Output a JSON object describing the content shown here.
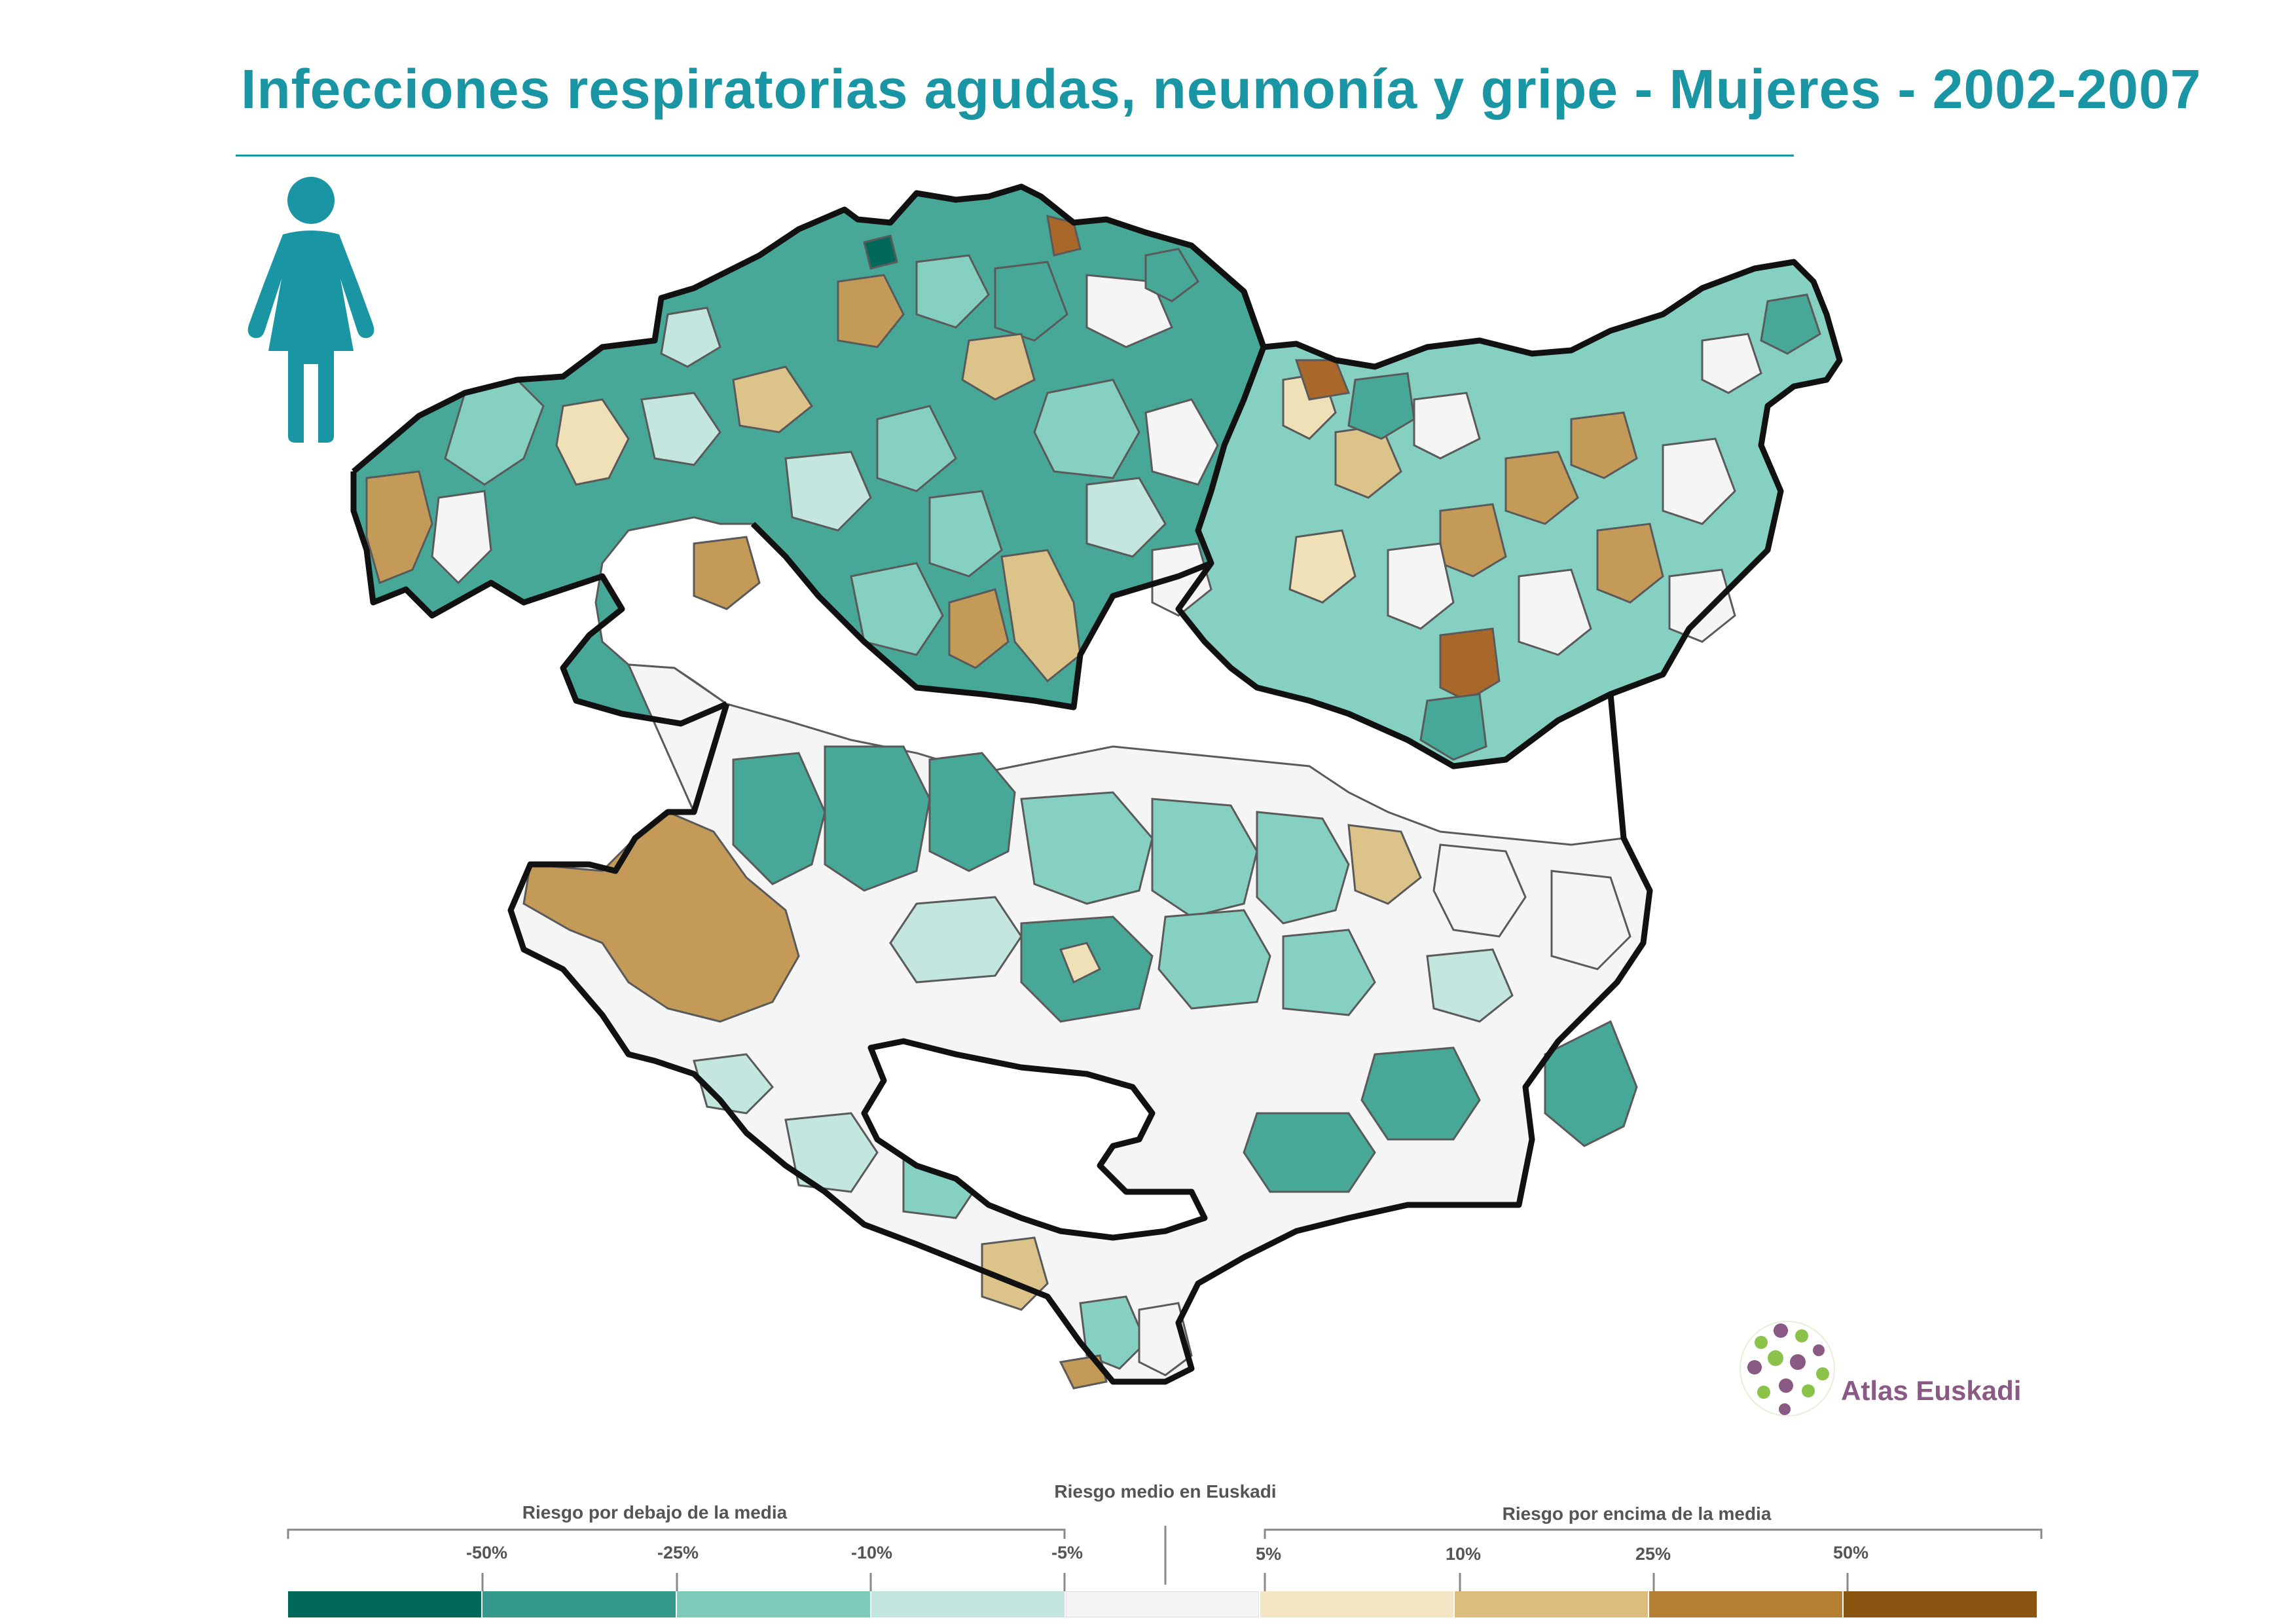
{
  "title": "Infecciones respiratorias agudas, neumonía y gripe - Mujeres - 2002-2007",
  "icons": {
    "figure": "woman-icon",
    "logo": "atlas-euskadi-logo"
  },
  "brand": {
    "name": "Atlas Euskadi",
    "title_color": "#1a95a3",
    "logo_text_color": "#8a5a84"
  },
  "legend": {
    "below_label": "Riesgo por debajo de la media",
    "mean_label": "Riesgo medio en Euskadi",
    "above_label": "Riesgo por encima de la media",
    "ticks": [
      "-50%",
      "-25%",
      "-10%",
      "-5%",
      "5%",
      "10%",
      "25%",
      "50%"
    ],
    "colors": [
      "#00695c",
      "#35998c",
      "#7ecab9",
      "#c3e7df",
      "#f5f5f5",
      "#f5e6c3",
      "#ddbd7c",
      "#b57f33",
      "#8a5510"
    ]
  },
  "map_colors": {
    "dark_teal": "#00695c",
    "teal": "#47a898",
    "light_teal": "#85d0c1",
    "pale_teal": "#c3e7df",
    "neutral": "#f5f5f5",
    "pale_tan": "#f0e0b8",
    "tan": "#dcc38a",
    "brown": "#c49a58",
    "dark_brown": "#a9682a",
    "border": "#111111"
  }
}
